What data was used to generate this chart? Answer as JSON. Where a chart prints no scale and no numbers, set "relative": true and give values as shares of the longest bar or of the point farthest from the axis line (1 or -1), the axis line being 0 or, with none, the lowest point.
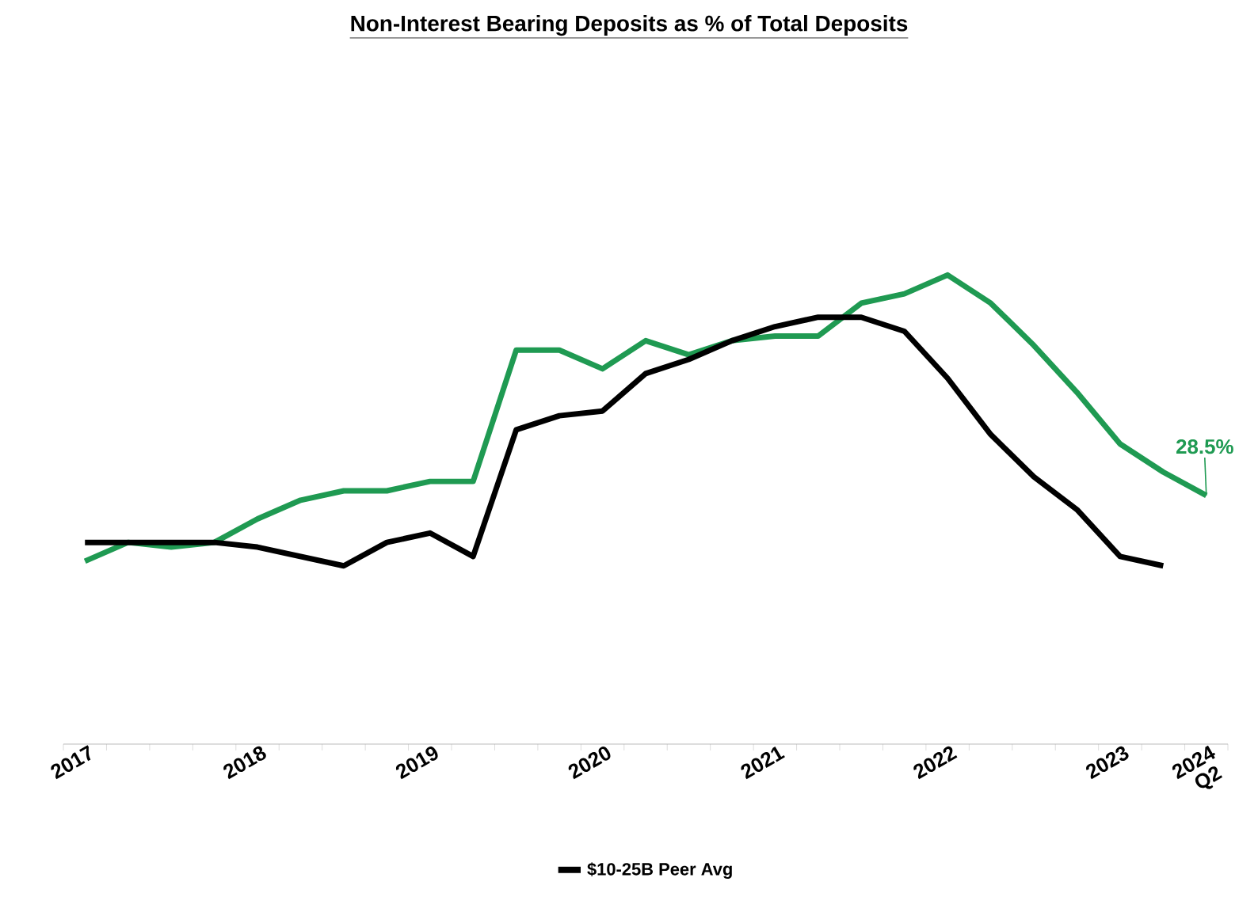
{
  "chart_data": {
    "type": "line",
    "title": "Non-Interest Bearing Deposits as % of Total Deposits",
    "relative": true,
    "annotations": [
      "28.5%"
    ],
    "categories": [
      "2017",
      null,
      null,
      null,
      "2018",
      null,
      null,
      null,
      "2019",
      null,
      null,
      null,
      "2020",
      null,
      null,
      null,
      "2021",
      null,
      null,
      null,
      "2022",
      null,
      null,
      null,
      "2023",
      null,
      "2024 Q2"
    ],
    "series": [
      {
        "color": "#1f9a52",
        "values": [
          0.39,
          0.43,
          0.42,
          0.43,
          0.48,
          0.52,
          0.54,
          0.54,
          0.56,
          0.56,
          0.84,
          0.84,
          0.8,
          0.86,
          0.83,
          0.86,
          0.87,
          0.87,
          0.94,
          0.96,
          1,
          0.94,
          0.85,
          0.75,
          0.64,
          0.58,
          0.53
        ]
      },
      {
        "name": "$10-25B Peer Avg",
        "color": "#000000",
        "values": [
          0.43,
          0.43,
          0.43,
          0.43,
          0.42,
          0.4,
          0.38,
          0.43,
          0.45,
          0.4,
          0.67,
          0.7,
          0.71,
          0.79,
          0.82,
          0.86,
          0.89,
          0.91,
          0.91,
          0.88,
          0.78,
          0.66,
          0.57,
          0.5,
          0.4,
          0.38,
          null
        ]
      }
    ],
    "legend": "bottom"
  }
}
